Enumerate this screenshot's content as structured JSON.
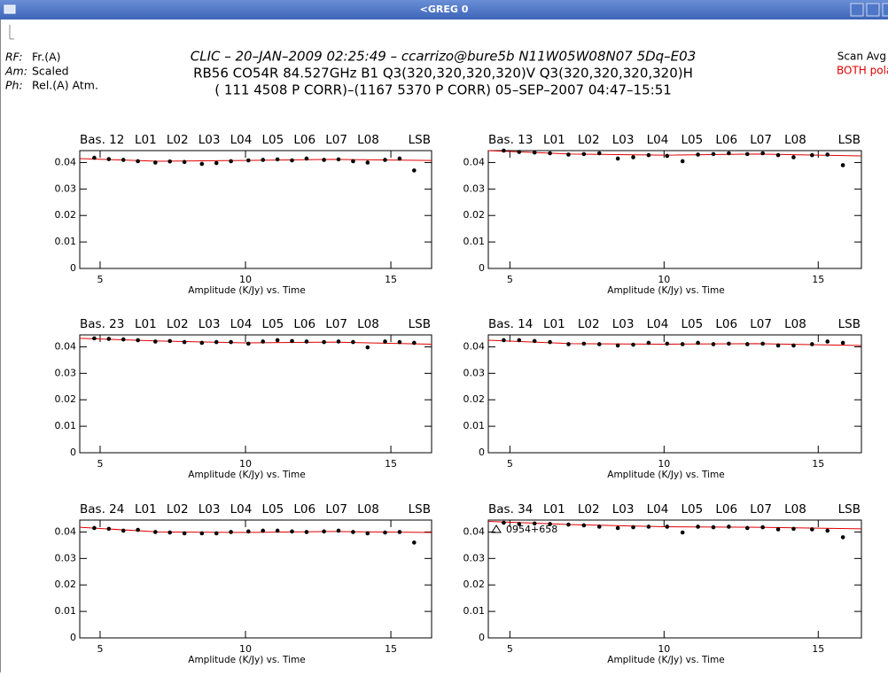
{
  "window": {
    "title": "<GREG  0"
  },
  "header": {
    "left_labels": [
      {
        "key": "RF:",
        "value": "Fr.(A)"
      },
      {
        "key": "Am:",
        "value": "Scaled"
      },
      {
        "key": "Ph:",
        "value": "Rel.(A) Atm."
      }
    ],
    "lines": [
      "CLIC – 20–JAN–2009 02:25:49 – ccarrizo@bure5b    N11W05W08N07 5Dq–E03",
      "RB56 CO54R 84.527GHz B1 Q3(320,320,320,320)V Q3(320,320,320,320)H",
      "( 111 4508 P CORR)–(1167 5370 P CORR) 05–SEP–2007 04:47–15:51"
    ],
    "right": [
      "Scan Avg",
      "BOTH polarizations"
    ]
  },
  "chart_data": [
    {
      "type": "scatter",
      "title": "Bas. 12",
      "segments": [
        "L01",
        "L02",
        "L03",
        "L04",
        "L05",
        "L06",
        "L07",
        "L08"
      ],
      "sideband": "LSB",
      "x_label": "Amplitude (K/Jy)  vs.  Time",
      "xlim": [
        4.3,
        16.4
      ],
      "ylim": [
        0,
        0.0445
      ],
      "xticks": [
        5,
        10,
        15
      ],
      "yticks": [
        0,
        0.01,
        0.02,
        0.03,
        0.04
      ],
      "color": "#000000",
      "x": [
        4.8,
        5.3,
        5.8,
        6.3,
        6.9,
        7.4,
        7.9,
        8.5,
        9.0,
        9.5,
        10.1,
        10.6,
        11.1,
        11.6,
        12.1,
        12.7,
        13.2,
        13.7,
        14.2,
        14.8,
        15.3,
        15.8
      ],
      "values": [
        0.0418,
        0.0413,
        0.041,
        0.0405,
        0.04,
        0.0404,
        0.0402,
        0.0395,
        0.0398,
        0.0405,
        0.0408,
        0.041,
        0.0412,
        0.0408,
        0.0415,
        0.041,
        0.0412,
        0.0405,
        0.04,
        0.041,
        0.0415,
        0.037
      ],
      "fit": {
        "color": "#e00000",
        "x": [
          4.3,
          7,
          10,
          13,
          16.4
        ],
        "values": [
          0.0415,
          0.0405,
          0.0408,
          0.0412,
          0.0408
        ]
      }
    },
    {
      "type": "scatter",
      "title": "Bas. 13",
      "segments": [
        "L01",
        "L02",
        "L03",
        "L04",
        "L05",
        "L06",
        "L07",
        "L08"
      ],
      "sideband": "LSB",
      "x_label": "Amplitude (K/Jy)  vs.  Time",
      "xlim": [
        4.3,
        16.4
      ],
      "ylim": [
        0,
        0.0445
      ],
      "xticks": [
        5,
        10,
        15
      ],
      "yticks": [
        0,
        0.01,
        0.02,
        0.03,
        0.04
      ],
      "color": "#000000",
      "x": [
        4.8,
        5.3,
        5.8,
        6.3,
        6.9,
        7.4,
        7.9,
        8.5,
        9.0,
        9.5,
        10.1,
        10.6,
        11.1,
        11.6,
        12.1,
        12.7,
        13.2,
        13.7,
        14.2,
        14.8,
        15.3,
        15.8
      ],
      "values": [
        0.0445,
        0.044,
        0.0438,
        0.0435,
        0.043,
        0.0432,
        0.0435,
        0.0415,
        0.042,
        0.0428,
        0.0425,
        0.0405,
        0.043,
        0.0432,
        0.0435,
        0.0432,
        0.0435,
        0.0428,
        0.042,
        0.0428,
        0.043,
        0.039
      ],
      "fit": {
        "color": "#e00000",
        "x": [
          4.3,
          7,
          10,
          13,
          16.4
        ],
        "values": [
          0.0445,
          0.0432,
          0.0428,
          0.0432,
          0.0425
        ]
      }
    },
    {
      "type": "scatter",
      "title": "Bas. 23",
      "segments": [
        "L01",
        "L02",
        "L03",
        "L04",
        "L05",
        "L06",
        "L07",
        "L08"
      ],
      "sideband": "LSB",
      "x_label": "Amplitude (K/Jy)  vs.  Time",
      "xlim": [
        4.3,
        16.4
      ],
      "ylim": [
        0,
        0.0445
      ],
      "xticks": [
        5,
        10,
        15
      ],
      "yticks": [
        0,
        0.01,
        0.02,
        0.03,
        0.04
      ],
      "color": "#000000",
      "x": [
        4.8,
        5.3,
        5.8,
        6.3,
        6.9,
        7.4,
        7.9,
        8.5,
        9.0,
        9.5,
        10.1,
        10.6,
        11.1,
        11.6,
        12.1,
        12.7,
        13.2,
        13.7,
        14.2,
        14.8,
        15.3,
        15.8
      ],
      "values": [
        0.0432,
        0.043,
        0.0428,
        0.0425,
        0.042,
        0.0422,
        0.0418,
        0.0415,
        0.0418,
        0.0418,
        0.0412,
        0.042,
        0.0425,
        0.0422,
        0.042,
        0.0418,
        0.042,
        0.0418,
        0.0398,
        0.042,
        0.0418,
        0.0415
      ],
      "fit": {
        "color": "#e00000",
        "x": [
          4.3,
          7,
          10,
          13,
          16.4
        ],
        "values": [
          0.0432,
          0.0422,
          0.0415,
          0.0418,
          0.041
        ]
      }
    },
    {
      "type": "scatter",
      "title": "Bas. 14",
      "segments": [
        "L01",
        "L02",
        "L03",
        "L04",
        "L05",
        "L06",
        "L07",
        "L08"
      ],
      "sideband": "LSB",
      "x_label": "Amplitude (K/Jy)  vs.  Time",
      "xlim": [
        4.3,
        16.4
      ],
      "ylim": [
        0,
        0.0445
      ],
      "xticks": [
        5,
        10,
        15
      ],
      "yticks": [
        0,
        0.01,
        0.02,
        0.03,
        0.04
      ],
      "color": "#000000",
      "x": [
        4.8,
        5.3,
        5.8,
        6.3,
        6.9,
        7.4,
        7.9,
        8.5,
        9.0,
        9.5,
        10.1,
        10.6,
        11.1,
        11.6,
        12.1,
        12.7,
        13.2,
        13.7,
        14.2,
        14.8,
        15.3,
        15.8
      ],
      "values": [
        0.0425,
        0.0425,
        0.0422,
        0.0418,
        0.041,
        0.0412,
        0.041,
        0.0405,
        0.0408,
        0.0415,
        0.0412,
        0.041,
        0.0415,
        0.041,
        0.0412,
        0.041,
        0.0412,
        0.0405,
        0.0405,
        0.041,
        0.042,
        0.0415
      ],
      "fit": {
        "color": "#e00000",
        "x": [
          4.3,
          7,
          10,
          13,
          16.4
        ],
        "values": [
          0.0425,
          0.0412,
          0.041,
          0.0412,
          0.0405
        ]
      }
    },
    {
      "type": "scatter",
      "title": "Bas. 24",
      "segments": [
        "L01",
        "L02",
        "L03",
        "L04",
        "L05",
        "L06",
        "L07",
        "L08"
      ],
      "sideband": "LSB",
      "x_label": "Amplitude (K/Jy)  vs.  Time",
      "xlim": [
        4.3,
        16.4
      ],
      "ylim": [
        0,
        0.0445
      ],
      "xticks": [
        5,
        10,
        15
      ],
      "yticks": [
        0,
        0.01,
        0.02,
        0.03,
        0.04
      ],
      "color": "#000000",
      "x": [
        4.8,
        5.3,
        5.8,
        6.3,
        6.9,
        7.4,
        7.9,
        8.5,
        9.0,
        9.5,
        10.1,
        10.6,
        11.1,
        11.6,
        12.1,
        12.7,
        13.2,
        13.7,
        14.2,
        14.8,
        15.3,
        15.8
      ],
      "values": [
        0.0415,
        0.0412,
        0.0405,
        0.0408,
        0.04,
        0.0398,
        0.0395,
        0.0395,
        0.0395,
        0.04,
        0.0402,
        0.0405,
        0.0405,
        0.0402,
        0.04,
        0.0402,
        0.0405,
        0.04,
        0.0395,
        0.0398,
        0.04,
        0.036
      ],
      "fit": {
        "color": "#e00000",
        "x": [
          4.3,
          7,
          10,
          13,
          16.4
        ],
        "values": [
          0.0418,
          0.04,
          0.0398,
          0.0402,
          0.0398
        ]
      }
    },
    {
      "type": "scatter",
      "title": "Bas. 34",
      "segments": [
        "L01",
        "L02",
        "L03",
        "L04",
        "L05",
        "L06",
        "L07",
        "L08"
      ],
      "sideband": "LSB",
      "x_label": "Amplitude (K/Jy)  vs.  Time",
      "annotation": "0954+658",
      "xlim": [
        4.3,
        16.4
      ],
      "ylim": [
        0,
        0.0445
      ],
      "xticks": [
        5,
        10,
        15
      ],
      "yticks": [
        0,
        0.01,
        0.02,
        0.03,
        0.04
      ],
      "color": "#000000",
      "x": [
        4.8,
        5.3,
        5.8,
        6.3,
        6.9,
        7.4,
        7.9,
        8.5,
        9.0,
        9.5,
        10.1,
        10.6,
        11.1,
        11.6,
        12.1,
        12.7,
        13.2,
        13.7,
        14.2,
        14.8,
        15.3,
        15.8
      ],
      "values": [
        0.0435,
        0.043,
        0.0432,
        0.043,
        0.0428,
        0.0425,
        0.042,
        0.0415,
        0.0418,
        0.042,
        0.042,
        0.0398,
        0.042,
        0.0418,
        0.042,
        0.0415,
        0.0418,
        0.041,
        0.0412,
        0.041,
        0.0405,
        0.038
      ],
      "fit": {
        "color": "#e00000",
        "x": [
          4.3,
          7,
          10,
          13,
          16.4
        ],
        "values": [
          0.044,
          0.0428,
          0.042,
          0.0418,
          0.0412
        ]
      }
    }
  ]
}
